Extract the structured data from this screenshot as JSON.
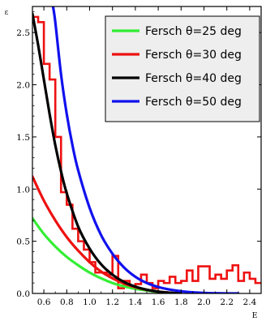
{
  "chart_data": {
    "type": "line",
    "title": "",
    "xlabel": "E",
    "ylabel": "ε",
    "xlim": [
      0.5,
      2.5
    ],
    "ylim": [
      0.0,
      2.75
    ],
    "grid": false,
    "legend_position": "top-right",
    "x_ticks": [
      0.6,
      0.8,
      1.0,
      1.2,
      1.4,
      1.6,
      1.8,
      2.0,
      2.2,
      2.4
    ],
    "x_tick_labels": [
      "0.6",
      "0.8",
      "1.0",
      "1.2",
      "1.4",
      "1.6",
      "1.8",
      "2.0",
      "2.2",
      "2.4"
    ],
    "y_ticks": [
      0.0,
      0.5,
      1.0,
      1.5,
      2.0,
      2.5
    ],
    "y_tick_labels": [
      "0.0",
      "0.5",
      "1.0",
      "1.5",
      "2.0",
      "2.5"
    ],
    "series": [
      {
        "name": "Fersch θ=25 deg",
        "color": "#33ee33",
        "x": [
          0.5,
          0.6,
          0.7,
          0.8,
          0.9,
          1.0,
          1.1,
          1.2,
          1.3,
          1.4,
          1.5,
          1.6,
          1.7,
          1.8
        ],
        "y": [
          0.72,
          0.57,
          0.45,
          0.35,
          0.27,
          0.2,
          0.145,
          0.1,
          0.068,
          0.044,
          0.028,
          0.015,
          0.006,
          0.0
        ]
      },
      {
        "name": "Fersch θ=30 deg",
        "color": "#ee1111",
        "x": [
          0.5,
          0.6,
          0.7,
          0.8,
          0.9,
          1.0,
          1.1,
          1.2,
          1.3,
          1.4,
          1.5,
          1.6,
          1.7,
          1.8
        ],
        "y": [
          1.12,
          0.89,
          0.7,
          0.54,
          0.41,
          0.3,
          0.21,
          0.145,
          0.095,
          0.06,
          0.035,
          0.018,
          0.007,
          0.0
        ]
      },
      {
        "name": "Fersch θ=40 deg",
        "color": "#000000",
        "x": [
          0.5,
          0.55,
          0.6,
          0.65,
          0.7,
          0.75,
          0.8,
          0.9,
          1.0,
          1.1,
          1.2,
          1.3,
          1.4,
          1.5,
          1.6,
          1.7,
          1.8
        ],
        "y": [
          2.68,
          2.38,
          2.05,
          1.72,
          1.42,
          1.17,
          0.96,
          0.64,
          0.43,
          0.28,
          0.18,
          0.11,
          0.065,
          0.035,
          0.017,
          0.007,
          0.0
        ]
      },
      {
        "name": "Fersch θ=50 deg",
        "color": "#1111ee",
        "x": [
          0.68,
          0.7,
          0.75,
          0.8,
          0.85,
          0.9,
          1.0,
          1.1,
          1.2,
          1.3,
          1.4,
          1.5,
          1.6,
          1.7,
          1.8,
          1.9,
          2.0,
          2.1,
          2.2,
          2.3
        ],
        "y": [
          2.75,
          2.6,
          2.1,
          1.72,
          1.42,
          1.18,
          0.82,
          0.56,
          0.38,
          0.25,
          0.16,
          0.1,
          0.062,
          0.037,
          0.021,
          0.011,
          0.005,
          0.002,
          0.0005,
          0.0
        ]
      }
    ],
    "histogram": {
      "color": "#ee1111",
      "bin_edges": [
        0.5,
        0.55,
        0.6,
        0.65,
        0.7,
        0.75,
        0.8,
        0.85,
        0.9,
        0.95,
        1.0,
        1.05,
        1.1,
        1.15,
        1.2,
        1.25,
        1.3,
        1.35,
        1.4,
        1.45,
        1.5,
        1.55,
        1.6,
        1.65,
        1.7,
        1.75,
        1.8,
        1.85,
        1.9,
        1.95,
        2.0,
        2.05,
        2.1,
        2.15,
        2.2,
        2.25,
        2.3,
        2.35,
        2.4,
        2.45,
        2.5
      ],
      "values": [
        2.65,
        2.6,
        2.2,
        2.05,
        1.5,
        0.97,
        0.85,
        0.62,
        0.5,
        0.42,
        0.3,
        0.2,
        0.2,
        0.18,
        0.36,
        0.05,
        0.12,
        0.07,
        0.09,
        0.18,
        0.1,
        0.05,
        0.12,
        0.1,
        0.16,
        0.1,
        0.12,
        0.22,
        0.12,
        0.26,
        0.26,
        0.14,
        0.18,
        0.14,
        0.22,
        0.27,
        0.12,
        0.2,
        0.14,
        0.1
      ]
    }
  }
}
